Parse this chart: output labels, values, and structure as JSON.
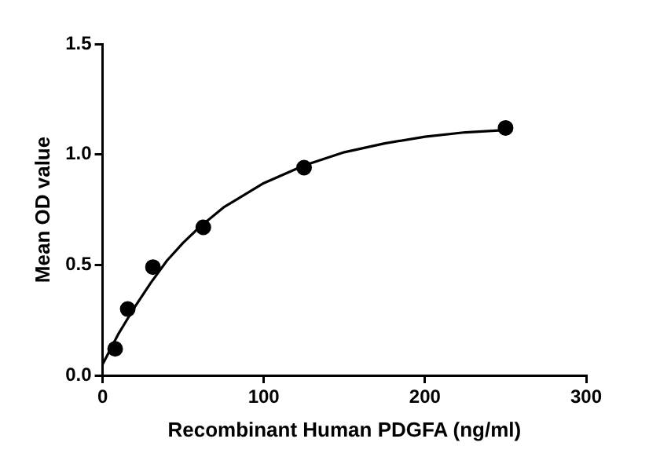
{
  "chart_data": {
    "type": "scatter",
    "xlabel": "Recombinant Human PDGFA (ng/ml)",
    "ylabel": "Mean OD value",
    "xlim": [
      0,
      300
    ],
    "xticks": [
      0,
      100,
      200,
      300
    ],
    "ylim": [
      0,
      1.5
    ],
    "yticks": [
      {
        "value": 0,
        "label": "0.0"
      },
      0.5,
      {
        "value": 1,
        "label": "1.0"
      },
      1.5
    ],
    "legend": false,
    "series": [
      {
        "type": "scatter",
        "color": "#000000",
        "marker": "circle",
        "x": [
          7.8,
          15.6,
          31.25,
          62.5,
          125,
          250
        ],
        "values": [
          0.12,
          0.3,
          0.49,
          0.67,
          0.94,
          1.12
        ]
      },
      {
        "type": "line",
        "color": "#000000",
        "marker": "none",
        "line_style": "solid",
        "x": [
          0,
          10,
          20,
          30,
          40,
          50,
          60,
          75,
          100,
          125,
          150,
          175,
          200,
          225,
          250
        ],
        "values": [
          0.05,
          0.19,
          0.31,
          0.42,
          0.52,
          0.6,
          0.67,
          0.76,
          0.87,
          0.95,
          1.01,
          1.05,
          1.08,
          1.1,
          1.11
        ]
      }
    ]
  }
}
